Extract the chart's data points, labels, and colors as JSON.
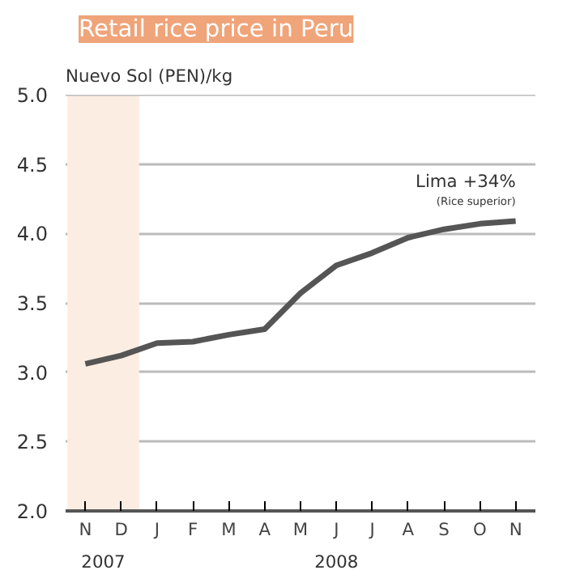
{
  "chart_data": {
    "type": "line",
    "title": "Retail rice price in Peru",
    "ylabel": "Nuevo Sol (PEN)/kg",
    "categories": [
      "N",
      "D",
      "J",
      "F",
      "M",
      "A",
      "M",
      "J",
      "J",
      "A",
      "S",
      "O",
      "N"
    ],
    "series": [
      {
        "color": "#555555",
        "values": [
          3.06,
          3.12,
          3.21,
          3.22,
          3.27,
          3.31,
          3.57,
          3.77,
          3.86,
          3.97,
          4.03,
          4.07,
          4.09
        ]
      }
    ],
    "ylim": [
      2.0,
      5.0
    ],
    "yticks": [
      {
        "value": 2,
        "label": "2.0"
      },
      {
        "value": 2.5,
        "label": "2.5"
      },
      {
        "value": 3,
        "label": "3.0"
      },
      {
        "value": 3.5,
        "label": "3.5"
      },
      {
        "value": 4,
        "label": "4.0"
      },
      {
        "value": 4.5,
        "label": "4.5"
      },
      {
        "value": 5,
        "label": "5.0"
      }
    ],
    "bands": [
      {
        "axis": "x",
        "from": "N",
        "to": "D",
        "label": "2007",
        "color": "#fcede3"
      }
    ],
    "annotations": [
      "Lima +34%",
      "(Rice superior)",
      "2008"
    ],
    "grid": "y",
    "marker": "none",
    "line_style": "solid"
  }
}
